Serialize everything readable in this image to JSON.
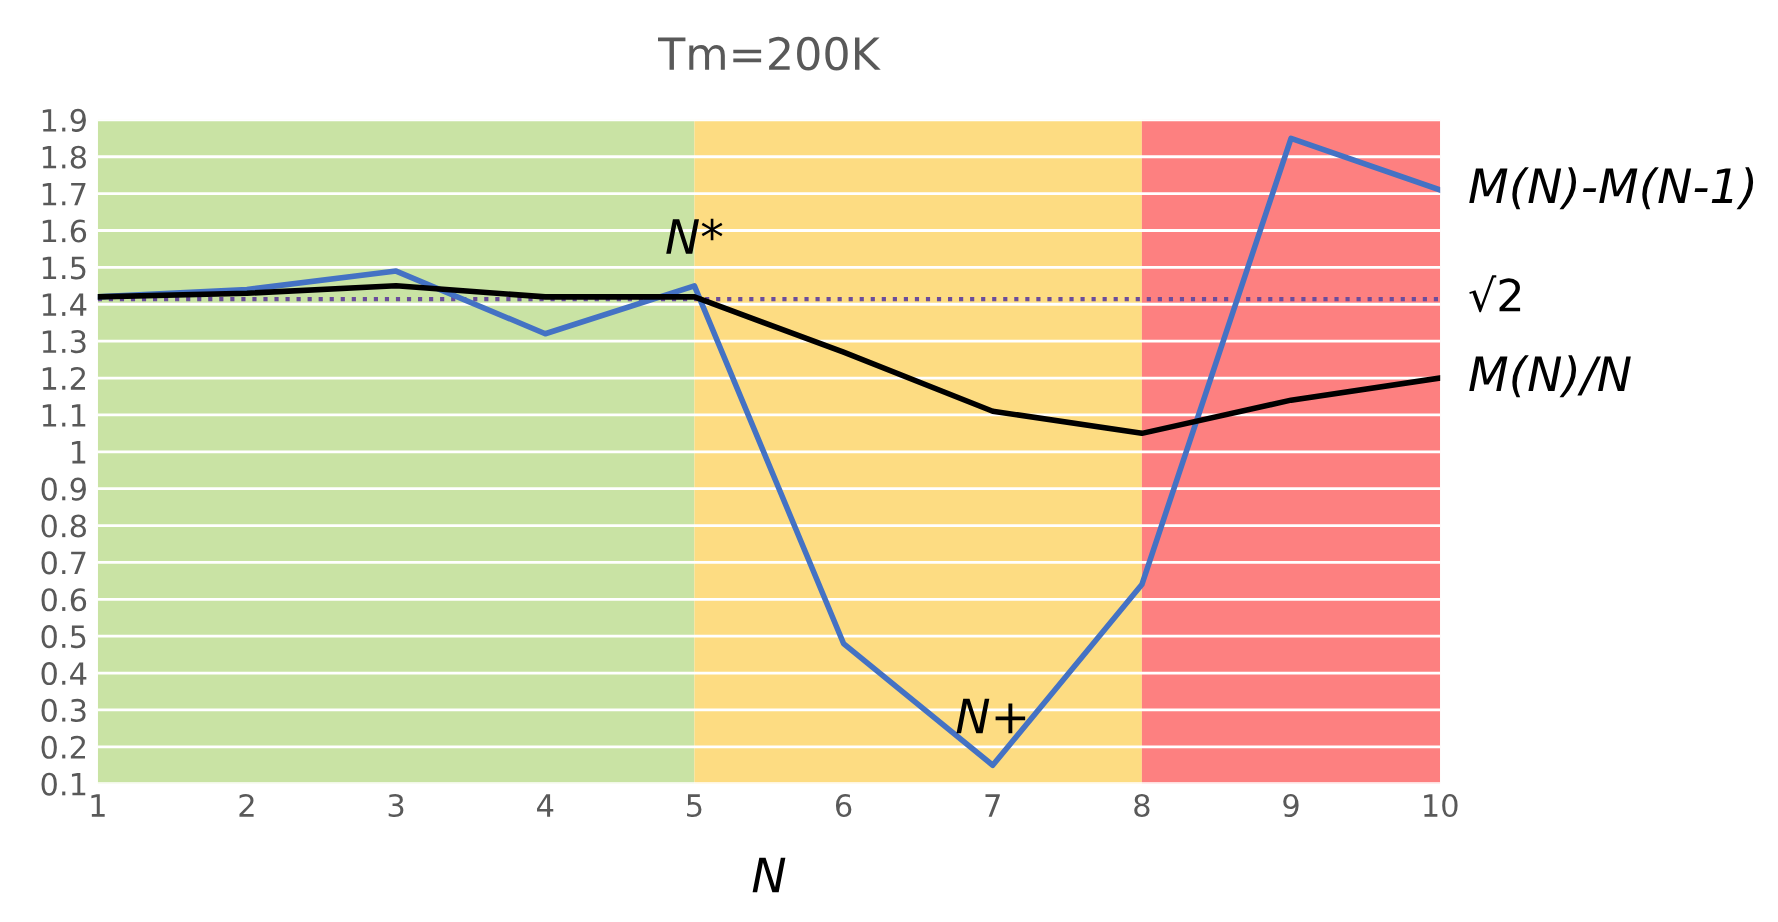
{
  "chart_data": {
    "type": "line",
    "title": "Tm=200K",
    "xlabel": "N",
    "x": [
      1,
      2,
      3,
      4,
      5,
      6,
      7,
      8,
      9,
      10
    ],
    "series": [
      {
        "name": "M(N)-M(N-1)",
        "color": "#4472c4",
        "values": [
          1.42,
          1.44,
          1.49,
          1.32,
          1.45,
          0.48,
          0.15,
          0.64,
          1.85,
          1.71
        ]
      },
      {
        "name": "M(N)/N",
        "color": "#000000",
        "values": [
          1.42,
          1.43,
          1.45,
          1.42,
          1.42,
          1.27,
          1.11,
          1.05,
          1.14,
          1.2
        ]
      }
    ],
    "xlim": [
      1,
      10
    ],
    "xticks": [
      1,
      2,
      3,
      4,
      5,
      6,
      7,
      8,
      9,
      10
    ],
    "ylim": [
      0.1,
      1.9
    ],
    "yticks": [
      0.1,
      0.2,
      0.3,
      0.4,
      0.5,
      0.6,
      0.7,
      0.8,
      0.9,
      1,
      1.1,
      1.2,
      1.3,
      1.4,
      1.5,
      1.6,
      1.7,
      1.8,
      1.9
    ],
    "ref_lines": [
      {
        "axis": "y",
        "value": 1.414,
        "label": "√2",
        "color": "#6a4c9c",
        "line_style": "dotted"
      }
    ],
    "bands": [
      {
        "axis": "x",
        "from": 1,
        "to": 5,
        "color": "#c9e3a4"
      },
      {
        "axis": "x",
        "from": 5,
        "to": 8,
        "color": "#fddc82"
      },
      {
        "axis": "x",
        "from": 8,
        "to": 10,
        "color": "#fd8080"
      }
    ],
    "annotations": [
      {
        "text": "N*",
        "x": 5,
        "y": 1.45
      },
      {
        "text": "N+",
        "x": 7,
        "y": 0.15
      }
    ],
    "grid": "y",
    "legend": false,
    "marker": "none",
    "line_style": "solid"
  }
}
